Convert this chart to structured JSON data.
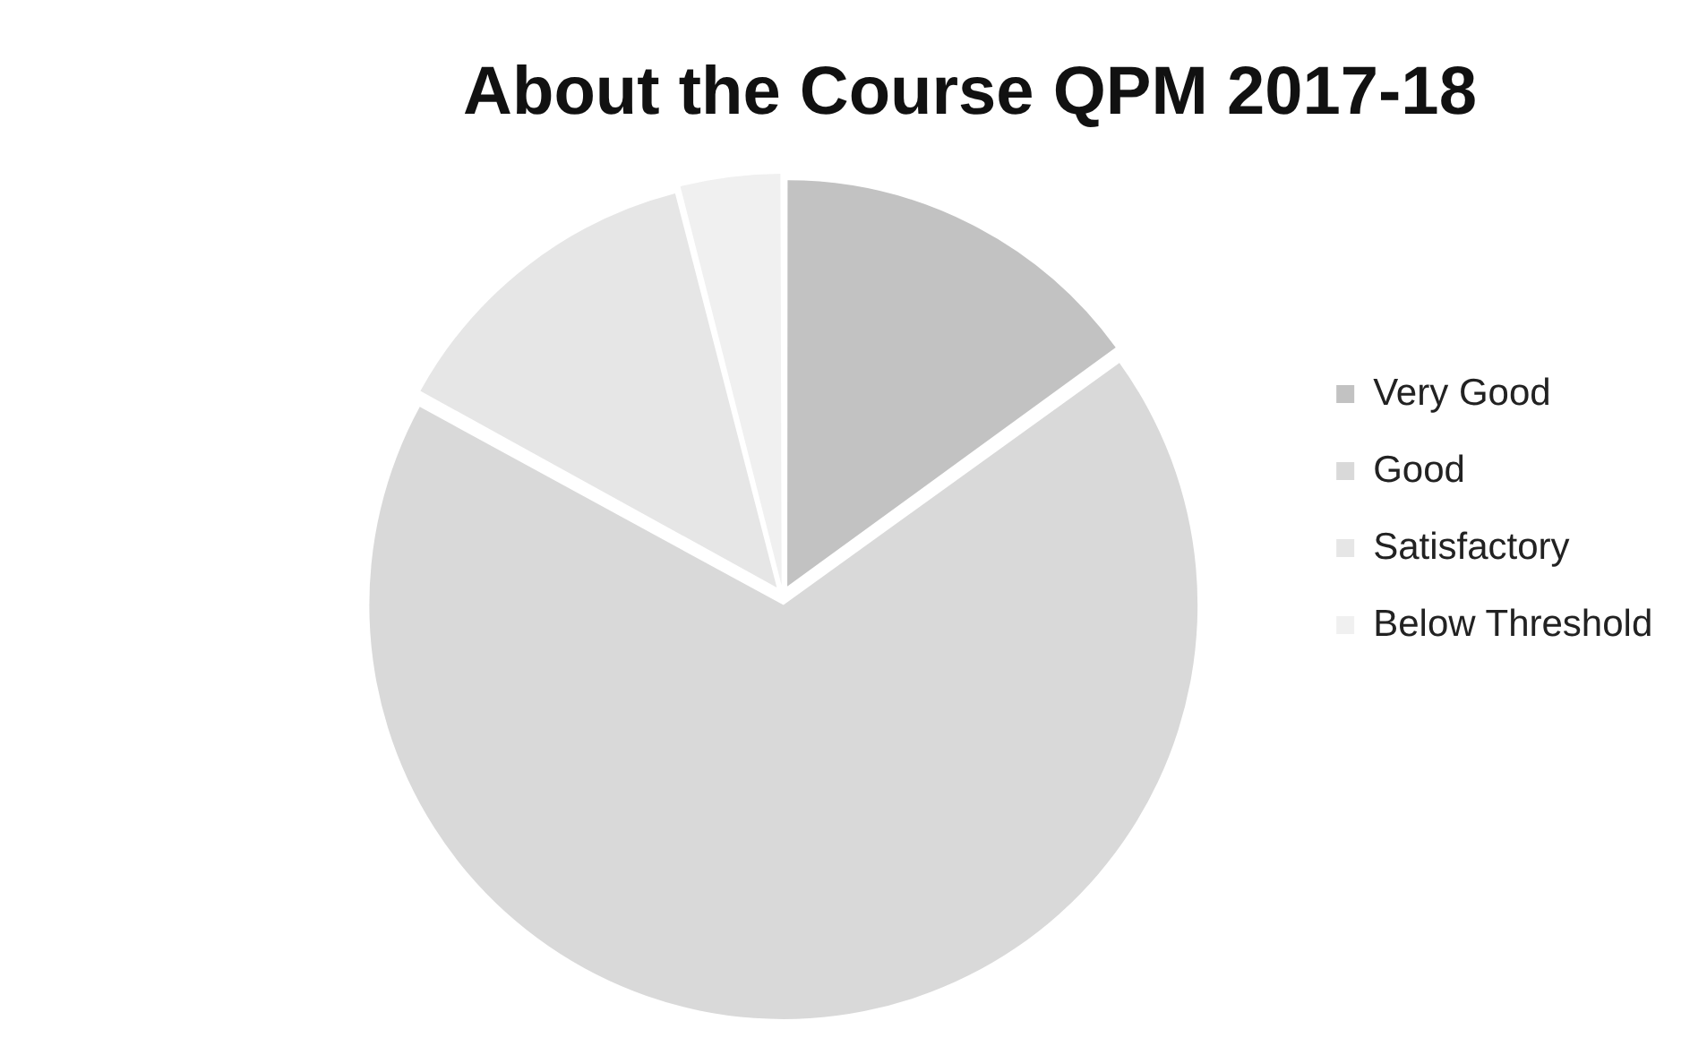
{
  "chart_data": {
    "type": "pie",
    "title": "About the Course QPM 2017-18",
    "categories": [
      "Very Good",
      "Good",
      "Satisfactory",
      "Below Threshold"
    ],
    "values": [
      15,
      68,
      13,
      4
    ],
    "colors": [
      "#c2c2c2",
      "#d9d9d9",
      "#e6e6e6",
      "#f0f0f0"
    ],
    "legend": "right"
  }
}
